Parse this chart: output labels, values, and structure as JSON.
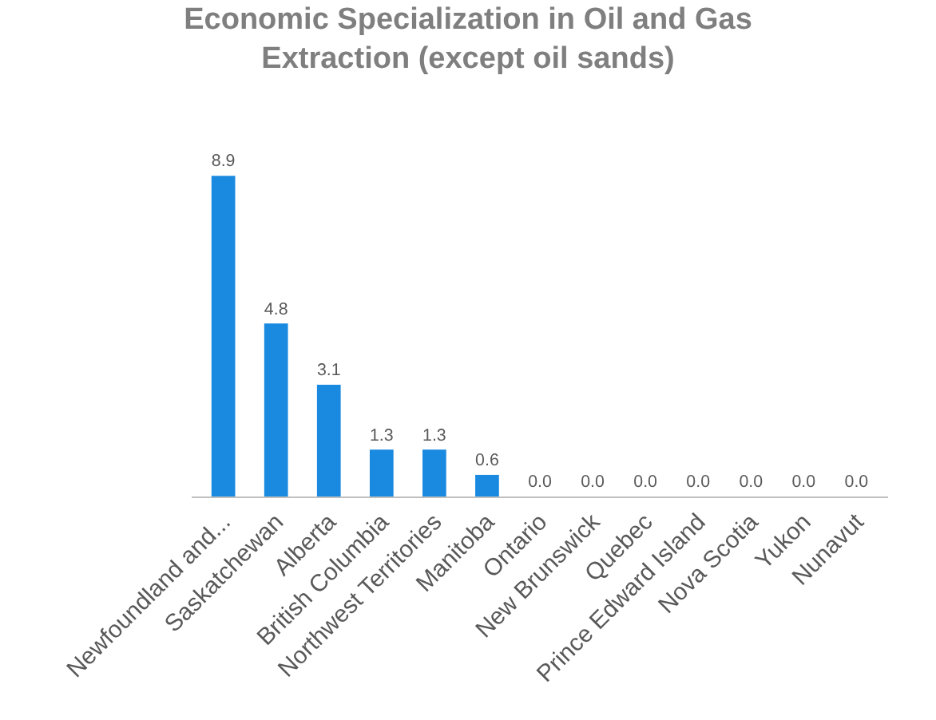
{
  "chart_data": {
    "type": "bar",
    "title": "Economic Specialization in Oil and Gas Extraction (except oil sands)",
    "categories": [
      "Newfoundland and...",
      "Saskatchewan",
      "Alberta",
      "British Columbia",
      "Northwest Territories",
      "Manitoba",
      "Ontario",
      "New Brunswick",
      "Quebec",
      "Prince Edward Island",
      "Nova Scotia",
      "Yukon",
      "Nunavut"
    ],
    "values": [
      8.9,
      4.8,
      3.1,
      1.3,
      1.3,
      0.6,
      0,
      0,
      0,
      0,
      0,
      0,
      0
    ],
    "value_labels": [
      "8.9",
      "4.8",
      "3.1",
      "1.3",
      "1.3",
      "0.6",
      "0.0",
      "0.0",
      "0.0",
      "0.0",
      "0.0",
      "0.0",
      "0.0"
    ],
    "color": "#1a8ae0"
  }
}
